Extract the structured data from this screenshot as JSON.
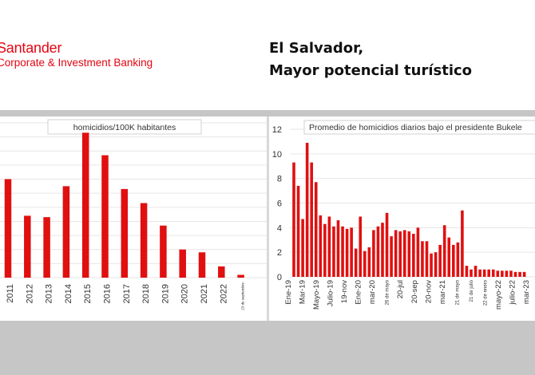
{
  "header": {
    "logo_brand": "Santander",
    "logo_subtitle": "Corporate & Investment Banking",
    "title_line1": "El Salvador,",
    "title_line2": "Mayor potencial turístico"
  },
  "colors": {
    "brand": "#e30613",
    "bar": "#e01010",
    "gray": "#c6c6c6"
  },
  "chart_data": [
    {
      "type": "bar",
      "title": "homicidios/100K habitantes",
      "categories": [
        "2011",
        "2012",
        "2013",
        "2014",
        "2015",
        "2016",
        "2017",
        "2018",
        "2019",
        "2020",
        "2021",
        "2022",
        "23 de septiembre"
      ],
      "values": [
        70,
        44,
        43,
        65,
        103,
        87,
        63,
        53,
        37,
        20,
        18,
        8,
        2
      ],
      "ylim": [
        0,
        110
      ],
      "grid": true
    },
    {
      "type": "bar",
      "title": "Promedio de homicidios diarios bajo el presidente Bukele",
      "yticks": [
        0,
        2,
        4,
        6,
        8,
        10,
        12
      ],
      "ylim": [
        0,
        12
      ],
      "grid": true,
      "values": [
        9.3,
        7.4,
        4.7,
        10.9,
        9.3,
        7.7,
        5.0,
        4.3,
        4.9,
        4.1,
        4.6,
        4.1,
        3.9,
        4.0,
        2.3,
        4.9,
        2.1,
        2.4,
        3.8,
        4.1,
        4.4,
        5.2,
        3.3,
        3.8,
        3.7,
        3.8,
        3.7,
        3.5,
        4.0,
        2.9,
        2.9,
        1.9,
        2.0,
        2.6,
        4.2,
        3.2,
        2.6,
        2.8,
        5.4,
        0.9,
        0.6,
        0.9,
        0.6,
        0.6,
        0.6,
        0.6,
        0.5,
        0.5,
        0.5,
        0.5,
        0.4,
        0.4,
        0.4
      ],
      "x_tick_labels": [
        "Ene-19",
        "Mar-19",
        "Mayo-19",
        "Julio-19",
        "19-nov",
        "Ene-20",
        "mar-20",
        "26 de mayo",
        "20-jul",
        "20-sep",
        "20-nov",
        "mar-21",
        "21 de mayo",
        "21 de julio",
        "22 de enero",
        "mayo-22",
        "julio-22",
        "mar-23"
      ]
    }
  ]
}
